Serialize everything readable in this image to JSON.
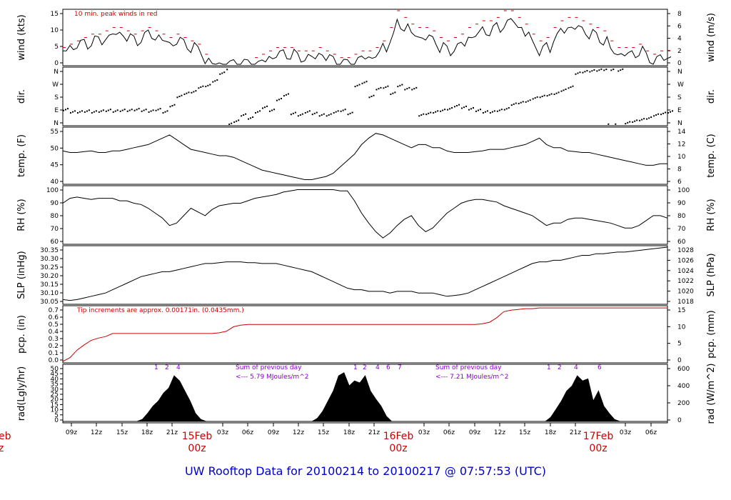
{
  "footer_title": "UW Rooftop Data for 20100214  to  20100217 @ 07:57:53  (UTC)",
  "colors": {
    "line": "#000000",
    "peak": "#cc0000",
    "pcp": "#cc0000",
    "annot": "#8800cc",
    "date": "#cc0000",
    "title": "#0000cc"
  },
  "chart_data": [
    {
      "type": "line",
      "ylabel_left": "wind (kts)",
      "ylabel_right": "wind (m/s)",
      "annotation": "10 min. peak winds in red",
      "left_ticks": [
        "0",
        "5",
        "10",
        "15"
      ],
      "right_ticks": [
        "0",
        "2",
        "4",
        "6",
        "8"
      ],
      "ylim": [
        0,
        16
      ],
      "series": [
        {
          "values_kts": [
            4,
            5,
            6,
            6,
            7,
            7,
            8,
            9,
            9,
            8,
            7,
            8,
            9,
            8,
            7,
            6,
            7,
            6,
            5,
            4,
            1,
            0,
            0,
            0,
            0,
            0,
            0,
            0,
            1,
            2,
            3,
            3,
            3,
            2,
            2,
            2,
            3,
            2,
            1,
            0,
            0,
            1,
            2,
            2,
            3,
            5,
            8,
            12,
            11,
            9,
            8,
            8,
            7,
            5,
            4,
            5,
            6,
            8,
            9,
            10,
            10,
            11,
            12,
            13,
            11,
            9,
            6,
            4,
            5,
            8,
            10,
            11,
            11,
            10,
            9,
            8,
            7,
            4,
            3,
            3,
            3,
            4,
            2,
            1,
            2,
            2
          ]
        },
        {
          "values_kts": [
            5,
            6,
            7,
            8,
            9,
            9,
            10,
            11,
            11,
            10,
            9,
            10,
            11,
            10,
            9,
            8,
            9,
            8,
            7,
            6,
            3,
            1,
            1,
            1,
            1,
            1,
            1,
            2,
            3,
            4,
            5,
            5,
            5,
            4,
            4,
            4,
            5,
            4,
            3,
            2,
            2,
            3,
            4,
            4,
            5,
            7,
            11,
            16,
            14,
            12,
            11,
            11,
            10,
            8,
            7,
            8,
            9,
            11,
            12,
            13,
            13,
            14,
            16,
            16,
            14,
            12,
            9,
            7,
            8,
            11,
            13,
            14,
            14,
            13,
            12,
            11,
            10,
            7,
            5,
            5,
            5,
            6,
            4,
            3,
            4,
            4
          ]
        }
      ]
    },
    {
      "type": "scatter",
      "ylabel_left": "dir.",
      "ylabel_right": "dir.",
      "left_ticks": [
        "N",
        "E",
        "S",
        "W",
        "N"
      ],
      "right_ticks": [
        "N",
        "E",
        "S",
        "W",
        "N"
      ],
      "ylim": [
        0,
        360
      ],
      "values_deg": [
        95,
        80,
        80,
        85,
        80,
        85,
        90,
        85,
        90,
        90,
        95,
        90,
        85,
        95,
        80,
        120,
        180,
        200,
        210,
        240,
        250,
        280,
        330,
        360,
        20,
        60,
        40,
        80,
        110,
        90,
        160,
        190,
        70,
        60,
        80,
        70,
        60,
        60,
        80,
        90,
        70,
        250,
        270,
        180,
        230,
        240,
        200,
        250,
        230,
        230,
        60,
        70,
        80,
        90,
        100,
        120,
        110,
        100,
        90,
        80,
        80,
        90,
        100,
        130,
        140,
        150,
        170,
        180,
        190,
        200,
        220,
        240,
        330,
        340,
        345,
        350,
        355,
        355,
        350,
        10,
        20,
        30,
        40,
        60,
        70,
        80
      ]
    },
    {
      "type": "line",
      "ylabel_left": "temp. (F)",
      "ylabel_right": "temp. (C)",
      "left_ticks": [
        "40",
        "45",
        "50",
        "55"
      ],
      "right_ticks": [
        "6",
        "8",
        "10",
        "12",
        "14"
      ],
      "ylim": [
        40,
        57
      ],
      "values_F": [
        50,
        49.5,
        49.5,
        49.8,
        50,
        49.5,
        49.5,
        50,
        50,
        50.5,
        51,
        51.5,
        52,
        53,
        54,
        55,
        53.5,
        52,
        50.5,
        50,
        49.5,
        49,
        48.5,
        48.5,
        48,
        47,
        46,
        45,
        44,
        43.5,
        43,
        42.5,
        42,
        41.5,
        41,
        41,
        41.5,
        42,
        43,
        45,
        47,
        49,
        52,
        54,
        55.5,
        55,
        54,
        53,
        52,
        51,
        52,
        52,
        51,
        51,
        50,
        49.5,
        49.5,
        49.5,
        49.8,
        50,
        50.5,
        50.5,
        50.5,
        51,
        51.5,
        52,
        53,
        54,
        52,
        51,
        51,
        50,
        49.8,
        49.5,
        49.5,
        49,
        48.5,
        48,
        47.5,
        47,
        46.5,
        46,
        45.5,
        45.5,
        46,
        46
      ]
    },
    {
      "type": "line",
      "ylabel_left": "RH (%)",
      "ylabel_right": "RH (%)",
      "left_ticks": [
        "60",
        "70",
        "80",
        "90",
        "100"
      ],
      "right_ticks": [
        "60",
        "70",
        "80",
        "90",
        "100"
      ],
      "ylim": [
        56,
        101
      ],
      "values_pct": [
        88,
        92,
        93,
        92,
        91,
        92,
        92,
        92,
        90,
        90,
        88,
        87,
        84,
        80,
        76,
        70,
        72,
        78,
        84,
        81,
        78,
        83,
        86,
        87,
        88,
        88,
        90,
        92,
        93,
        94,
        95,
        97,
        98,
        99,
        99,
        99,
        99,
        99,
        99,
        98,
        98,
        90,
        80,
        72,
        65,
        60,
        64,
        70,
        75,
        78,
        70,
        65,
        68,
        74,
        80,
        84,
        88,
        90,
        91,
        91,
        90,
        89,
        86,
        84,
        82,
        80,
        78,
        74,
        70,
        72,
        72,
        75,
        76,
        76,
        75,
        74,
        73,
        72,
        70,
        68,
        68,
        70,
        74,
        78,
        78,
        76
      ]
    },
    {
      "type": "line",
      "ylabel_left": "SLP (inHg)",
      "ylabel_right": "SLP (hPa)",
      "left_ticks": [
        "30.05",
        "30.10",
        "30.15",
        "30.20",
        "30.25",
        "30.30",
        "30.35"
      ],
      "right_ticks": [
        "1018",
        "1020",
        "1022",
        "1024",
        "1026",
        "1028"
      ],
      "ylim": [
        30.04,
        30.38
      ],
      "values_inHg": [
        30.06,
        30.055,
        30.06,
        30.07,
        30.08,
        30.09,
        30.1,
        30.12,
        30.14,
        30.16,
        30.18,
        30.2,
        30.21,
        30.22,
        30.23,
        30.23,
        30.24,
        30.25,
        30.26,
        30.27,
        30.28,
        30.28,
        30.285,
        30.29,
        30.29,
        30.29,
        30.285,
        30.285,
        30.28,
        30.28,
        30.28,
        30.27,
        30.26,
        30.25,
        30.24,
        30.23,
        30.21,
        30.19,
        30.17,
        30.15,
        30.13,
        30.12,
        30.12,
        30.11,
        30.11,
        30.11,
        30.1,
        30.11,
        30.11,
        30.11,
        30.1,
        30.1,
        30.1,
        30.09,
        30.08,
        30.085,
        30.09,
        30.1,
        30.12,
        30.14,
        30.16,
        30.18,
        30.2,
        30.22,
        30.24,
        30.26,
        30.28,
        30.29,
        30.29,
        30.3,
        30.3,
        30.31,
        30.32,
        30.33,
        30.33,
        30.34,
        30.34,
        30.345,
        30.35,
        30.35,
        30.355,
        30.36,
        30.365,
        30.37,
        30.375,
        30.38
      ]
    },
    {
      "type": "line",
      "ylabel_left": "pcp. (in)",
      "ylabel_right": "pcp. (mm)",
      "annotation": "Tip increments are approx. 0.00171in. (0.0435mm.)",
      "left_ticks": [
        "0.0",
        "0.1",
        "0.2",
        "0.3",
        "0.4",
        "0.5",
        "0.6",
        "0.7"
      ],
      "right_ticks": [
        "0",
        "5",
        "10",
        "15"
      ],
      "ylim": [
        0,
        0.72
      ],
      "values_in": [
        0,
        0.05,
        0.15,
        0.22,
        0.28,
        0.31,
        0.33,
        0.37,
        0.37,
        0.37,
        0.37,
        0.37,
        0.37,
        0.37,
        0.37,
        0.37,
        0.37,
        0.37,
        0.37,
        0.37,
        0.37,
        0.37,
        0.38,
        0.4,
        0.46,
        0.48,
        0.49,
        0.49,
        0.49,
        0.49,
        0.49,
        0.49,
        0.49,
        0.49,
        0.49,
        0.49,
        0.49,
        0.49,
        0.49,
        0.49,
        0.49,
        0.49,
        0.49,
        0.49,
        0.49,
        0.49,
        0.49,
        0.49,
        0.49,
        0.49,
        0.49,
        0.49,
        0.49,
        0.49,
        0.49,
        0.49,
        0.49,
        0.49,
        0.49,
        0.5,
        0.52,
        0.58,
        0.66,
        0.68,
        0.69,
        0.7,
        0.7,
        0.71,
        0.71,
        0.71,
        0.71,
        0.71,
        0.71,
        0.71,
        0.71,
        0.71,
        0.71,
        0.71,
        0.71,
        0.71,
        0.71,
        0.71,
        0.71,
        0.71,
        0.71,
        0.71
      ]
    },
    {
      "type": "area",
      "ylabel_left": "rad(Lgly/hr)",
      "ylabel_right": "rad (W/m^2)",
      "left_ticks": [
        "0",
        "5",
        "10",
        "15",
        "20",
        "25",
        "30",
        "35",
        "40",
        "45",
        "50"
      ],
      "right_ticks": [
        "0",
        "200",
        "400",
        "600"
      ],
      "ylim": [
        0,
        55
      ],
      "values_lgly": [
        0,
        0,
        0,
        0,
        0,
        0,
        0,
        0,
        0,
        0,
        0,
        0,
        0,
        0,
        0,
        2,
        8,
        15,
        20,
        28,
        33,
        45,
        40,
        30,
        20,
        8,
        2,
        0,
        0,
        0,
        0,
        0,
        0,
        0,
        0,
        0,
        0,
        0,
        0,
        0,
        0,
        0,
        0,
        0,
        0,
        0,
        0,
        0,
        3,
        10,
        20,
        30,
        45,
        48,
        35,
        40,
        38,
        45,
        30,
        22,
        15,
        5,
        0,
        0,
        0,
        0,
        0,
        0,
        0,
        0,
        0,
        0,
        0,
        0,
        0,
        0,
        0,
        0,
        0,
        0,
        0,
        0,
        0,
        0,
        0,
        0,
        0,
        0,
        0,
        0,
        0,
        0,
        4,
        12,
        20,
        30,
        35,
        45,
        40,
        42,
        20,
        30,
        15,
        8,
        2,
        0,
        0,
        0,
        0,
        0,
        0,
        0,
        0,
        0,
        0
      ],
      "annotations": [
        {
          "text": "1",
          "x_frac": 0
        },
        {
          "text": "2"
        },
        {
          "text": "4"
        },
        {
          "text": "Sum of previous day"
        },
        {
          "text": "<--- 5.79 MJoules/m^2"
        },
        {
          "text": "1"
        },
        {
          "text": "2"
        },
        {
          "text": "4"
        },
        {
          "text": "6"
        },
        {
          "text": "7"
        },
        {
          "text": "Sum of previous day"
        },
        {
          "text": "<--- 7.21 MJoules/m^2"
        },
        {
          "text": "1"
        },
        {
          "text": "2"
        },
        {
          "text": "4"
        },
        {
          "text": "6"
        }
      ]
    }
  ],
  "x_axis": {
    "ticks": [
      "09z",
      "12z",
      "15z",
      "18z",
      "21z",
      "03z",
      "06z",
      "09z",
      "12z",
      "15z",
      "18z",
      "21z",
      "03z",
      "06z",
      "09z",
      "12z",
      "15z",
      "18z",
      "21z",
      "03z",
      "06z"
    ],
    "day_labels": [
      {
        "date": "eb",
        "hour": "z"
      },
      {
        "date": "15Feb",
        "hour": "00z"
      },
      {
        "date": "16Feb",
        "hour": "00z"
      },
      {
        "date": "17Feb",
        "hour": "00z"
      }
    ]
  }
}
